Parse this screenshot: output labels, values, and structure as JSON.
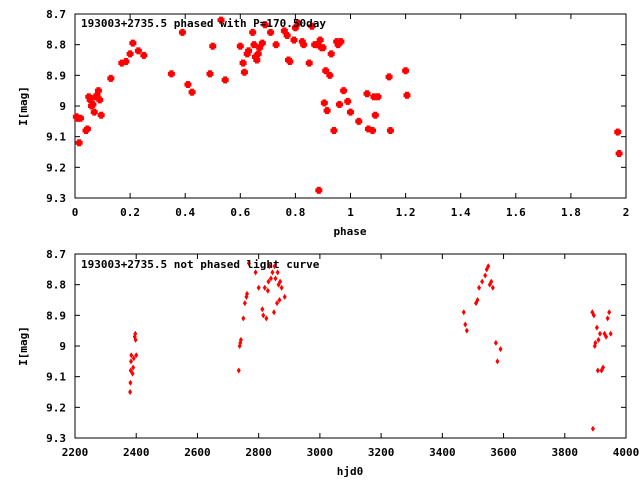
{
  "chart_data": [
    {
      "type": "scatter",
      "title": "193003+2735.5 phased with P=170.50day",
      "xlabel": "phase",
      "ylabel": "I[mag]",
      "xlim": [
        0,
        2
      ],
      "ylim": [
        8.7,
        9.3
      ],
      "y_inverted": true,
      "grid": false,
      "marker_color": "#ff0000",
      "x_ticks": [
        "0",
        "0.2",
        "0.4",
        "0.6",
        "0.8",
        "1",
        "1.2",
        "1.4",
        "1.6",
        "1.8",
        "2"
      ],
      "x_tick_values": [
        0,
        0.2,
        0.4,
        0.6,
        0.8,
        1.0,
        1.2,
        1.4,
        1.6,
        1.8,
        2.0
      ],
      "y_ticks": [
        "8.7",
        "8.8",
        "8.9",
        "9",
        "9.1",
        "9.2",
        "9.3"
      ],
      "y_tick_values": [
        8.7,
        8.8,
        8.9,
        9.0,
        9.1,
        9.2,
        9.3
      ],
      "points": [
        [
          0.005,
          9.035
        ],
        [
          0.01,
          9.04
        ],
        [
          0.015,
          9.12
        ],
        [
          0.02,
          9.04
        ],
        [
          0.04,
          9.08
        ],
        [
          0.045,
          9.075
        ],
        [
          0.05,
          8.97
        ],
        [
          0.055,
          8.98
        ],
        [
          0.06,
          9.0
        ],
        [
          0.065,
          8.995
        ],
        [
          0.07,
          9.02
        ],
        [
          0.075,
          8.97
        ],
        [
          0.08,
          8.965
        ],
        [
          0.085,
          8.95
        ],
        [
          0.09,
          8.98
        ],
        [
          0.095,
          9.03
        ],
        [
          0.13,
          8.91
        ],
        [
          0.17,
          8.86
        ],
        [
          0.185,
          8.855
        ],
        [
          0.2,
          8.83
        ],
        [
          0.21,
          8.795
        ],
        [
          0.23,
          8.82
        ],
        [
          0.25,
          8.835
        ],
        [
          0.35,
          8.895
        ],
        [
          0.39,
          8.76
        ],
        [
          0.41,
          8.93
        ],
        [
          0.425,
          8.955
        ],
        [
          0.49,
          8.895
        ],
        [
          0.5,
          8.805
        ],
        [
          0.53,
          8.72
        ],
        [
          0.545,
          8.915
        ],
        [
          0.6,
          8.805
        ],
        [
          0.61,
          8.86
        ],
        [
          0.615,
          8.89
        ],
        [
          0.625,
          8.83
        ],
        [
          0.63,
          8.82
        ],
        [
          0.645,
          8.76
        ],
        [
          0.65,
          8.8
        ],
        [
          0.655,
          8.84
        ],
        [
          0.66,
          8.85
        ],
        [
          0.665,
          8.83
        ],
        [
          0.67,
          8.81
        ],
        [
          0.68,
          8.795
        ],
        [
          0.69,
          8.735
        ],
        [
          0.71,
          8.76
        ],
        [
          0.73,
          8.8
        ],
        [
          0.76,
          8.755
        ],
        [
          0.77,
          8.77
        ],
        [
          0.775,
          8.85
        ],
        [
          0.78,
          8.855
        ],
        [
          0.795,
          8.785
        ],
        [
          0.8,
          8.745
        ],
        [
          0.81,
          8.73
        ],
        [
          0.825,
          8.79
        ],
        [
          0.83,
          8.8
        ],
        [
          0.85,
          8.86
        ],
        [
          0.86,
          8.74
        ],
        [
          0.87,
          8.8
        ],
        [
          0.88,
          8.8
        ],
        [
          0.885,
          9.275
        ],
        [
          0.89,
          8.785
        ],
        [
          0.895,
          8.81
        ],
        [
          0.9,
          8.81
        ],
        [
          0.905,
          8.99
        ],
        [
          0.91,
          8.885
        ],
        [
          0.915,
          9.015
        ],
        [
          0.925,
          8.9
        ],
        [
          0.93,
          8.83
        ],
        [
          0.94,
          9.08
        ],
        [
          0.95,
          8.79
        ],
        [
          0.955,
          8.8
        ],
        [
          0.96,
          8.995
        ],
        [
          0.965,
          8.79
        ],
        [
          0.975,
          8.95
        ],
        [
          0.99,
          8.985
        ],
        [
          1.0,
          9.02
        ],
        [
          1.03,
          9.05
        ],
        [
          1.06,
          8.96
        ],
        [
          1.065,
          9.075
        ],
        [
          1.08,
          9.08
        ],
        [
          1.085,
          8.97
        ],
        [
          1.09,
          9.03
        ],
        [
          1.1,
          8.97
        ],
        [
          1.14,
          8.905
        ],
        [
          1.145,
          9.08
        ],
        [
          1.2,
          8.885
        ],
        [
          1.205,
          8.965
        ],
        [
          1.97,
          9.085
        ],
        [
          1.975,
          9.155
        ]
      ]
    },
    {
      "type": "scatter",
      "title": "193003+2735.5 not phased light curve",
      "xlabel": "hjd0",
      "ylabel": "I[mag]",
      "xlim": [
        2200,
        4000
      ],
      "ylim": [
        8.7,
        9.3
      ],
      "y_inverted": true,
      "grid": false,
      "marker_color": "#ff0000",
      "x_ticks": [
        "2200",
        "2400",
        "2600",
        "2800",
        "3000",
        "3200",
        "3400",
        "3600",
        "3800",
        "4000"
      ],
      "x_tick_values": [
        2200,
        2400,
        2600,
        2800,
        3000,
        3200,
        3400,
        3600,
        3800,
        4000
      ],
      "y_ticks": [
        "8.7",
        "8.8",
        "8.9",
        "9",
        "9.1",
        "9.2",
        "9.3"
      ],
      "y_tick_values": [
        8.7,
        8.8,
        8.9,
        9.0,
        9.1,
        9.2,
        9.3
      ],
      "points": [
        [
          2380,
          9.15
        ],
        [
          2381,
          9.12
        ],
        [
          2382,
          9.08
        ],
        [
          2383,
          9.05
        ],
        [
          2384,
          9.03
        ],
        [
          2388,
          9.09
        ],
        [
          2390,
          9.07
        ],
        [
          2392,
          9.04
        ],
        [
          2395,
          8.97
        ],
        [
          2397,
          8.96
        ],
        [
          2400,
          9.03
        ],
        [
          2398,
          8.98
        ],
        [
          2735,
          9.08
        ],
        [
          2738,
          9.0
        ],
        [
          2740,
          8.99
        ],
        [
          2742,
          8.98
        ],
        [
          2750,
          8.91
        ],
        [
          2755,
          8.86
        ],
        [
          2760,
          8.84
        ],
        [
          2762,
          8.83
        ],
        [
          2768,
          8.73
        ],
        [
          2790,
          8.76
        ],
        [
          2800,
          8.81
        ],
        [
          2812,
          8.88
        ],
        [
          2815,
          8.9
        ],
        [
          2820,
          8.81
        ],
        [
          2825,
          8.91
        ],
        [
          2830,
          8.82
        ],
        [
          2832,
          8.79
        ],
        [
          2835,
          8.74
        ],
        [
          2840,
          8.78
        ],
        [
          2845,
          8.76
        ],
        [
          2850,
          8.89
        ],
        [
          2852,
          8.74
        ],
        [
          2855,
          8.78
        ],
        [
          2860,
          8.86
        ],
        [
          2862,
          8.76
        ],
        [
          2865,
          8.8
        ],
        [
          2868,
          8.85
        ],
        [
          2870,
          8.79
        ],
        [
          2875,
          8.81
        ],
        [
          2885,
          8.84
        ],
        [
          3470,
          8.89
        ],
        [
          3475,
          8.93
        ],
        [
          3480,
          8.95
        ],
        [
          3510,
          8.86
        ],
        [
          3515,
          8.85
        ],
        [
          3520,
          8.81
        ],
        [
          3530,
          8.79
        ],
        [
          3540,
          8.77
        ],
        [
          3545,
          8.75
        ],
        [
          3550,
          8.74
        ],
        [
          3555,
          8.8
        ],
        [
          3560,
          8.79
        ],
        [
          3565,
          8.81
        ],
        [
          3575,
          8.99
        ],
        [
          3580,
          9.05
        ],
        [
          3590,
          9.01
        ],
        [
          3890,
          8.89
        ],
        [
          3895,
          8.9
        ],
        [
          3898,
          9.0
        ],
        [
          3900,
          8.99
        ],
        [
          3892,
          9.27
        ],
        [
          3905,
          8.94
        ],
        [
          3908,
          9.08
        ],
        [
          3910,
          8.98
        ],
        [
          3915,
          8.96
        ],
        [
          3920,
          9.08
        ],
        [
          3925,
          9.07
        ],
        [
          3930,
          8.96
        ],
        [
          3935,
          8.97
        ],
        [
          3940,
          8.91
        ],
        [
          3945,
          8.89
        ],
        [
          3950,
          8.96
        ]
      ]
    }
  ]
}
